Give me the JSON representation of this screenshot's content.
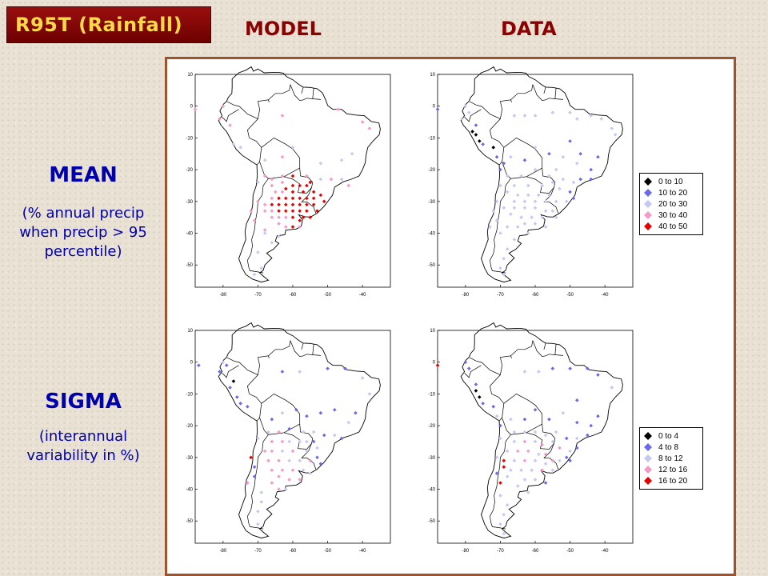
{
  "title": "R95T (Rainfall)",
  "columns": {
    "model": "MODEL",
    "data": "DATA"
  },
  "rows": {
    "mean": {
      "heading": "MEAN",
      "desc": [
        "(% annual precip",
        "when precip > 95",
        "percentile)"
      ]
    },
    "sigma": {
      "heading": "SIGMA",
      "desc": [
        "(interannual",
        "variability in %)"
      ]
    }
  },
  "axes": {
    "x_ticks": [
      -80,
      -70,
      -60,
      -50,
      -40
    ],
    "y_ticks": [
      10,
      0,
      -10,
      -20,
      -30,
      -40,
      -50
    ],
    "xlim": [
      -88,
      -32
    ],
    "ylim": [
      -57,
      10
    ]
  },
  "colors": {
    "class0": "#000000",
    "class1": "#6a6ae8",
    "class2": "#c6c8f4",
    "class3": "#f49ac8",
    "class4": "#e60000",
    "coast": "#000000",
    "panel_border": "#a0522d",
    "title_bg": "#8b0000",
    "title_text": "#ffd84a"
  },
  "legends": {
    "mean": [
      "0 to 10",
      "10 to 20",
      "20 to 30",
      "30 to 40",
      "40 to 50"
    ],
    "sigma": [
      "0 to 4",
      "4 to 8",
      "8 to 12",
      "12 to 16",
      "16 to 20"
    ]
  },
  "maps": {
    "mean_model": [
      [
        -88,
        -1,
        3
      ],
      [
        -81,
        -4,
        3
      ],
      [
        -78,
        -6,
        3
      ],
      [
        -80,
        0,
        3
      ],
      [
        -63,
        -3,
        3
      ],
      [
        -47,
        -1,
        3
      ],
      [
        -40,
        -5,
        3
      ],
      [
        -38,
        -7,
        3
      ],
      [
        -77,
        -12,
        2
      ],
      [
        -75,
        -13,
        2
      ],
      [
        -68,
        -17,
        2
      ],
      [
        -63,
        -16,
        3
      ],
      [
        -60,
        -13,
        2
      ],
      [
        -52,
        -18,
        2
      ],
      [
        -46,
        -17,
        2
      ],
      [
        -43,
        -15,
        2
      ],
      [
        -68,
        -22,
        3
      ],
      [
        -66,
        -23,
        3
      ],
      [
        -63,
        -22,
        3
      ],
      [
        -60,
        -22,
        4
      ],
      [
        -56,
        -22,
        3
      ],
      [
        -52,
        -23,
        2
      ],
      [
        -49,
        -23,
        3
      ],
      [
        -46,
        -23,
        2
      ],
      [
        -44,
        -25,
        3
      ],
      [
        -66,
        -25,
        3
      ],
      [
        -63,
        -24,
        3
      ],
      [
        -62,
        -26,
        4
      ],
      [
        -60,
        -25,
        4
      ],
      [
        -58,
        -25,
        4
      ],
      [
        -56,
        -25,
        4
      ],
      [
        -55,
        -24,
        4
      ],
      [
        -54,
        -27,
        4
      ],
      [
        -57,
        -27,
        4
      ],
      [
        -60,
        -27,
        4
      ],
      [
        -63,
        -27,
        3
      ],
      [
        -65,
        -27,
        3
      ],
      [
        -66,
        -29,
        3
      ],
      [
        -64,
        -29,
        4
      ],
      [
        -62,
        -29,
        4
      ],
      [
        -60,
        -29,
        4
      ],
      [
        -58,
        -29,
        4
      ],
      [
        -56,
        -29,
        4
      ],
      [
        -54,
        -29,
        4
      ],
      [
        -52,
        -28,
        4
      ],
      [
        -51,
        -30,
        4
      ],
      [
        -68,
        -31,
        3
      ],
      [
        -66,
        -31,
        4
      ],
      [
        -64,
        -31,
        4
      ],
      [
        -62,
        -31,
        4
      ],
      [
        -60,
        -31,
        4
      ],
      [
        -58,
        -31,
        4
      ],
      [
        -56,
        -31,
        4
      ],
      [
        -54,
        -31,
        4
      ],
      [
        -53,
        -33,
        4
      ],
      [
        -68,
        -33,
        3
      ],
      [
        -66,
        -33,
        3
      ],
      [
        -64,
        -33,
        4
      ],
      [
        -62,
        -33,
        4
      ],
      [
        -60,
        -33,
        4
      ],
      [
        -58,
        -33,
        4
      ],
      [
        -56,
        -33,
        4
      ],
      [
        -55,
        -35,
        4
      ],
      [
        -57,
        -35,
        4
      ],
      [
        -66,
        -35,
        3
      ],
      [
        -64,
        -35,
        3
      ],
      [
        -62,
        -35,
        3
      ],
      [
        -60,
        -35,
        4
      ],
      [
        -58,
        -36,
        4
      ],
      [
        -64,
        -37,
        3
      ],
      [
        -62,
        -38,
        3
      ],
      [
        -60,
        -38,
        4
      ],
      [
        -58,
        -38,
        3
      ],
      [
        -68,
        -39,
        3
      ],
      [
        -71,
        -36,
        3
      ],
      [
        -72,
        -33,
        3
      ],
      [
        -70,
        -30,
        3
      ],
      [
        -70,
        -24,
        2
      ],
      [
        -68,
        -40,
        2
      ],
      [
        -64,
        -41,
        2
      ],
      [
        -66,
        -43,
        2
      ],
      [
        -70,
        -46,
        2
      ],
      [
        -69,
        -51,
        2
      ],
      [
        -71,
        -53,
        2
      ]
    ],
    "mean_data": [
      [
        -88,
        -1,
        1
      ],
      [
        -81,
        -4,
        2
      ],
      [
        -80,
        0,
        2
      ],
      [
        -79,
        -2,
        2
      ],
      [
        -77,
        -6,
        1
      ],
      [
        -78,
        -8,
        0
      ],
      [
        -77,
        -9,
        0
      ],
      [
        -76,
        -11,
        0
      ],
      [
        -75,
        -12,
        1
      ],
      [
        -72,
        -13,
        0
      ],
      [
        -71,
        -16,
        1
      ],
      [
        -66,
        -3,
        2
      ],
      [
        -63,
        -3,
        2
      ],
      [
        -60,
        -3,
        2
      ],
      [
        -55,
        -2,
        2
      ],
      [
        -50,
        -2,
        2
      ],
      [
        -48,
        -4,
        2
      ],
      [
        -44,
        -3,
        2
      ],
      [
        -41,
        -4,
        2
      ],
      [
        -38,
        -7,
        2
      ],
      [
        -37,
        -9,
        2
      ],
      [
        -67,
        -16,
        2
      ],
      [
        -63,
        -17,
        1
      ],
      [
        -60,
        -13,
        2
      ],
      [
        -56,
        -15,
        1
      ],
      [
        -52,
        -16,
        2
      ],
      [
        -48,
        -18,
        2
      ],
      [
        -44,
        -20,
        1
      ],
      [
        -42,
        -16,
        1
      ],
      [
        -47,
        -15,
        1
      ],
      [
        -50,
        -11,
        1
      ],
      [
        -68,
        -22,
        2
      ],
      [
        -64,
        -22,
        2
      ],
      [
        -60,
        -20,
        2
      ],
      [
        -56,
        -22,
        2
      ],
      [
        -54,
        -20,
        2
      ],
      [
        -52,
        -23,
        2
      ],
      [
        -49,
        -24,
        2
      ],
      [
        -47,
        -23,
        1
      ],
      [
        -44,
        -23,
        1
      ],
      [
        -66,
        -25,
        2
      ],
      [
        -62,
        -25,
        2
      ],
      [
        -58,
        -25,
        2
      ],
      [
        -55,
        -24,
        2
      ],
      [
        -53,
        -26,
        2
      ],
      [
        -50,
        -27,
        1
      ],
      [
        -49,
        -29,
        1
      ],
      [
        -51,
        -30,
        2
      ],
      [
        -68,
        -27,
        2
      ],
      [
        -65,
        -28,
        2
      ],
      [
        -62,
        -28,
        2
      ],
      [
        -59,
        -28,
        2
      ],
      [
        -56,
        -28,
        2
      ],
      [
        -54,
        -30,
        2
      ],
      [
        -57,
        -30,
        2
      ],
      [
        -60,
        -30,
        2
      ],
      [
        -63,
        -30,
        2
      ],
      [
        -66,
        -30,
        2
      ],
      [
        -69,
        -32,
        2
      ],
      [
        -66,
        -32,
        2
      ],
      [
        -63,
        -32,
        2
      ],
      [
        -60,
        -32,
        2
      ],
      [
        -57,
        -33,
        2
      ],
      [
        -55,
        -33,
        2
      ],
      [
        -54,
        -35,
        2
      ],
      [
        -58,
        -35,
        2
      ],
      [
        -61,
        -35,
        2
      ],
      [
        -64,
        -35,
        2
      ],
      [
        -67,
        -34,
        2
      ],
      [
        -63,
        -37,
        2
      ],
      [
        -60,
        -37,
        2
      ],
      [
        -57,
        -38,
        2
      ],
      [
        -65,
        -38,
        2
      ],
      [
        -62,
        -40,
        2
      ],
      [
        -68,
        -38,
        2
      ],
      [
        -70,
        -40,
        2
      ],
      [
        -66,
        -42,
        2
      ],
      [
        -68,
        -45,
        2
      ],
      [
        -69,
        -48,
        2
      ],
      [
        -70,
        -51,
        2
      ],
      [
        -69,
        -53,
        2
      ],
      [
        -71,
        -30,
        2
      ],
      [
        -72,
        -33,
        2
      ],
      [
        -71,
        -36,
        2
      ],
      [
        -73,
        -38,
        2
      ],
      [
        -70,
        -25,
        2
      ],
      [
        -70,
        -20,
        1
      ],
      [
        -69,
        -18,
        1
      ]
    ],
    "sigma_model": [
      [
        -87,
        -1,
        1
      ],
      [
        -81,
        -3,
        1
      ],
      [
        -79,
        -1,
        1
      ],
      [
        -80,
        0,
        2
      ],
      [
        -77,
        -6,
        0
      ],
      [
        -78,
        -8,
        1
      ],
      [
        -76,
        -11,
        1
      ],
      [
        -75,
        -13,
        1
      ],
      [
        -73,
        -14,
        1
      ],
      [
        -63,
        -3,
        1
      ],
      [
        -58,
        -3,
        2
      ],
      [
        -50,
        -2,
        1
      ],
      [
        -45,
        -2,
        1
      ],
      [
        -40,
        -5,
        2
      ],
      [
        -38,
        -10,
        2
      ],
      [
        -66,
        -18,
        1
      ],
      [
        -63,
        -16,
        2
      ],
      [
        -59,
        -15,
        1
      ],
      [
        -56,
        -17,
        1
      ],
      [
        -52,
        -16,
        1
      ],
      [
        -48,
        -15,
        1
      ],
      [
        -44,
        -19,
        2
      ],
      [
        -42,
        -16,
        1
      ],
      [
        -67,
        -22,
        2
      ],
      [
        -64,
        -22,
        3
      ],
      [
        -61,
        -21,
        1
      ],
      [
        -57,
        -22,
        2
      ],
      [
        -54,
        -22,
        2
      ],
      [
        -51,
        -23,
        1
      ],
      [
        -48,
        -23,
        2
      ],
      [
        -46,
        -24,
        1
      ],
      [
        -53,
        -27,
        2
      ],
      [
        -66,
        -25,
        3
      ],
      [
        -63,
        -25,
        3
      ],
      [
        -61,
        -25,
        2
      ],
      [
        -58,
        -25,
        2
      ],
      [
        -56,
        -25,
        2
      ],
      [
        -54,
        -25,
        1
      ],
      [
        -56,
        -28,
        2
      ],
      [
        -60,
        -28,
        3
      ],
      [
        -63,
        -28,
        2
      ],
      [
        -66,
        -28,
        3
      ],
      [
        -68,
        -28,
        3
      ],
      [
        -67,
        -31,
        3
      ],
      [
        -64,
        -31,
        3
      ],
      [
        -61,
        -31,
        2
      ],
      [
        -58,
        -31,
        2
      ],
      [
        -55,
        -31,
        3
      ],
      [
        -53,
        -30,
        1
      ],
      [
        -52,
        -32,
        1
      ],
      [
        -66,
        -34,
        3
      ],
      [
        -63,
        -34,
        3
      ],
      [
        -60,
        -34,
        3
      ],
      [
        -57,
        -34,
        2
      ],
      [
        -55,
        -35,
        2
      ],
      [
        -64,
        -36,
        3
      ],
      [
        -61,
        -37,
        3
      ],
      [
        -58,
        -37,
        3
      ],
      [
        -66,
        -38,
        3
      ],
      [
        -64,
        -40,
        3
      ],
      [
        -62,
        -40,
        2
      ],
      [
        -72,
        -30,
        4
      ],
      [
        -71,
        -33,
        1
      ],
      [
        -71,
        -36,
        1
      ],
      [
        -73,
        -38,
        3
      ],
      [
        -70,
        -24,
        2
      ],
      [
        -69,
        -41,
        2
      ],
      [
        -69,
        -44,
        2
      ],
      [
        -70,
        -47,
        2
      ],
      [
        -70,
        -51,
        2
      ]
    ],
    "sigma_data": [
      [
        -88,
        -1,
        4
      ],
      [
        -80,
        0,
        1
      ],
      [
        -79,
        -2,
        1
      ],
      [
        -77,
        -7,
        1
      ],
      [
        -77,
        -9,
        0
      ],
      [
        -76,
        -11,
        0
      ],
      [
        -75,
        -13,
        1
      ],
      [
        -72,
        -14,
        1
      ],
      [
        -71,
        -17,
        2
      ],
      [
        -63,
        -3,
        2
      ],
      [
        -59,
        -3,
        2
      ],
      [
        -55,
        -2,
        1
      ],
      [
        -50,
        -2,
        1
      ],
      [
        -45,
        -2,
        1
      ],
      [
        -42,
        -4,
        1
      ],
      [
        -38,
        -8,
        2
      ],
      [
        -67,
        -18,
        2
      ],
      [
        -63,
        -18,
        1
      ],
      [
        -60,
        -15,
        1
      ],
      [
        -56,
        -18,
        1
      ],
      [
        -52,
        -16,
        2
      ],
      [
        -48,
        -19,
        1
      ],
      [
        -44,
        -20,
        1
      ],
      [
        -42,
        -17,
        1
      ],
      [
        -48,
        -12,
        1
      ],
      [
        -66,
        -22,
        2
      ],
      [
        -63,
        -22,
        2
      ],
      [
        -60,
        -22,
        2
      ],
      [
        -57,
        -23,
        2
      ],
      [
        -54,
        -22,
        2
      ],
      [
        -51,
        -24,
        1
      ],
      [
        -48,
        -24,
        2
      ],
      [
        -45,
        -23,
        1
      ],
      [
        -66,
        -25,
        2
      ],
      [
        -63,
        -25,
        3
      ],
      [
        -60,
        -25,
        2
      ],
      [
        -58,
        -26,
        3
      ],
      [
        -55,
        -25,
        2
      ],
      [
        -53,
        -27,
        3
      ],
      [
        -50,
        -28,
        2
      ],
      [
        -48,
        -27,
        1
      ],
      [
        -68,
        -28,
        2
      ],
      [
        -65,
        -28,
        3
      ],
      [
        -62,
        -28,
        3
      ],
      [
        -59,
        -29,
        2
      ],
      [
        -57,
        -29,
        3
      ],
      [
        -55,
        -31,
        3
      ],
      [
        -53,
        -31,
        2
      ],
      [
        -51,
        -30,
        1
      ],
      [
        -50,
        -31,
        1
      ],
      [
        -69,
        -31,
        4
      ],
      [
        -66,
        -31,
        2
      ],
      [
        -63,
        -31,
        3
      ],
      [
        -60,
        -31,
        2
      ],
      [
        -57,
        -32,
        2
      ],
      [
        -55,
        -34,
        2
      ],
      [
        -58,
        -34,
        3
      ],
      [
        -61,
        -34,
        2
      ],
      [
        -64,
        -34,
        2
      ],
      [
        -67,
        -34,
        2
      ],
      [
        -69,
        -33,
        4
      ],
      [
        -71,
        -30,
        2
      ],
      [
        -71,
        -35,
        1
      ],
      [
        -70,
        -38,
        4
      ],
      [
        -68,
        -36,
        2
      ],
      [
        -63,
        -37,
        2
      ],
      [
        -60,
        -37,
        2
      ],
      [
        -57,
        -38,
        1
      ],
      [
        -65,
        -39,
        2
      ],
      [
        -62,
        -41,
        2
      ],
      [
        -70,
        -42,
        2
      ],
      [
        -68,
        -45,
        2
      ],
      [
        -69,
        -48,
        2
      ],
      [
        -70,
        -51,
        2
      ],
      [
        -69,
        -54,
        2
      ],
      [
        -70,
        -24,
        2
      ],
      [
        -70,
        -20,
        1
      ]
    ]
  }
}
